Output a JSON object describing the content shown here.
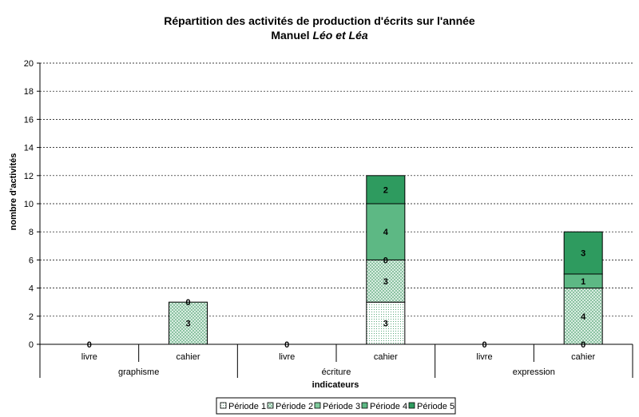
{
  "chart_data": {
    "type": "bar",
    "stacked": true,
    "title_line1": "Répartition des activités de production d'écrits sur l'année",
    "title_line2_prefix": "Manuel ",
    "title_line2_italic": "Léo et Léa",
    "xlabel": "indicateurs",
    "ylabel": "nombre d'activités",
    "ylim": [
      0,
      20
    ],
    "yticks": [
      "0",
      "2",
      "4",
      "6",
      "8",
      "10",
      "12",
      "14",
      "16",
      "18",
      "20"
    ],
    "grid": true,
    "legend_position": "bottom",
    "categories": [
      "livre",
      "cahier",
      "livre",
      "cahier",
      "livre",
      "cahier"
    ],
    "groups": [
      "graphisme",
      "écriture",
      "expression"
    ],
    "series": [
      {
        "name": "Période 1",
        "values": [
          0,
          0,
          0,
          3,
          0,
          0
        ],
        "color": "#ffffff",
        "pattern": "dots"
      },
      {
        "name": "Période 2",
        "values": [
          0,
          3,
          0,
          3,
          0,
          4
        ],
        "color": "#b7e0c6",
        "pattern": "cross"
      },
      {
        "name": "Période 3",
        "values": [
          0,
          0,
          0,
          0,
          0,
          0
        ],
        "color": "#7fca9c",
        "pattern": "solid"
      },
      {
        "name": "Période 4",
        "values": [
          0,
          0,
          0,
          4,
          0,
          1
        ],
        "color": "#5db884",
        "pattern": "solid"
      },
      {
        "name": "Période 5",
        "values": [
          0,
          0,
          0,
          2,
          0,
          3
        ],
        "color": "#2e9b5f",
        "pattern": "solid"
      }
    ],
    "data_labels": [
      {
        "bar": 0,
        "value": "0",
        "series": 0
      },
      {
        "bar": 1,
        "value": "3",
        "series": 1
      },
      {
        "bar": 1,
        "value": "0",
        "series": 3
      },
      {
        "bar": 2,
        "value": "0",
        "series": 0
      },
      {
        "bar": 3,
        "value": "3",
        "series": 0
      },
      {
        "bar": 3,
        "value": "3",
        "series": 1
      },
      {
        "bar": 3,
        "value": "0",
        "series": 2
      },
      {
        "bar": 3,
        "value": "4",
        "series": 3
      },
      {
        "bar": 3,
        "value": "2",
        "series": 4
      },
      {
        "bar": 4,
        "value": "0",
        "series": 0
      },
      {
        "bar": 5,
        "value": "0",
        "series": 0
      },
      {
        "bar": 5,
        "value": "4",
        "series": 1
      },
      {
        "bar": 5,
        "value": "1",
        "series": 3
      },
      {
        "bar": 5,
        "value": "3",
        "series": 4
      }
    ]
  }
}
